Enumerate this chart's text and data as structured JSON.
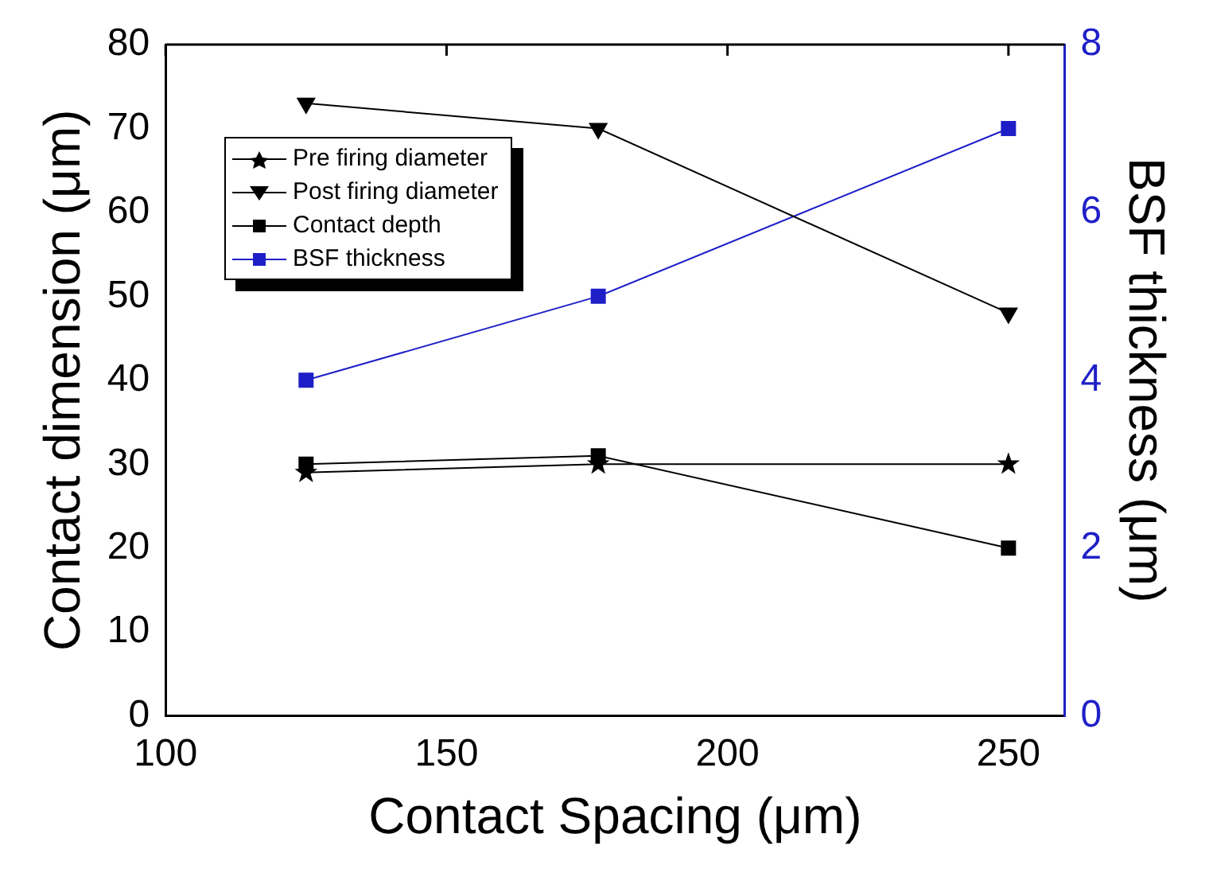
{
  "chart_data": {
    "type": "line",
    "xlabel": "Contact Spacing (μm)",
    "ylabel": "Contact dimension (μm)",
    "y2label": "BSF thickness (μm)",
    "x": [
      125,
      177,
      250
    ],
    "xlim": [
      100,
      260
    ],
    "xticks": [
      100,
      150,
      200,
      250
    ],
    "ylim": [
      0,
      80
    ],
    "yticks": [
      0,
      10,
      20,
      30,
      40,
      50,
      60,
      70,
      80
    ],
    "y2lim": [
      0,
      8
    ],
    "y2ticks": [
      0,
      2,
      4,
      6,
      8
    ],
    "legend": "top left",
    "grid": false,
    "line_style": "solid",
    "series": [
      {
        "name": "Pre firing diameter",
        "color": "#000000",
        "marker": "star",
        "values": [
          29,
          30,
          30
        ]
      },
      {
        "name": "Post firing diameter",
        "color": "#000000",
        "marker": "triangle",
        "values": [
          73,
          70,
          48
        ]
      },
      {
        "name": "Contact depth",
        "color": "#000000",
        "marker": "square",
        "values": [
          30,
          31,
          20
        ]
      },
      {
        "name": "BSF thickness",
        "color": "#1f1fc8",
        "marker": "square",
        "axis": "y2",
        "values": [
          4,
          5,
          7
        ]
      }
    ]
  }
}
